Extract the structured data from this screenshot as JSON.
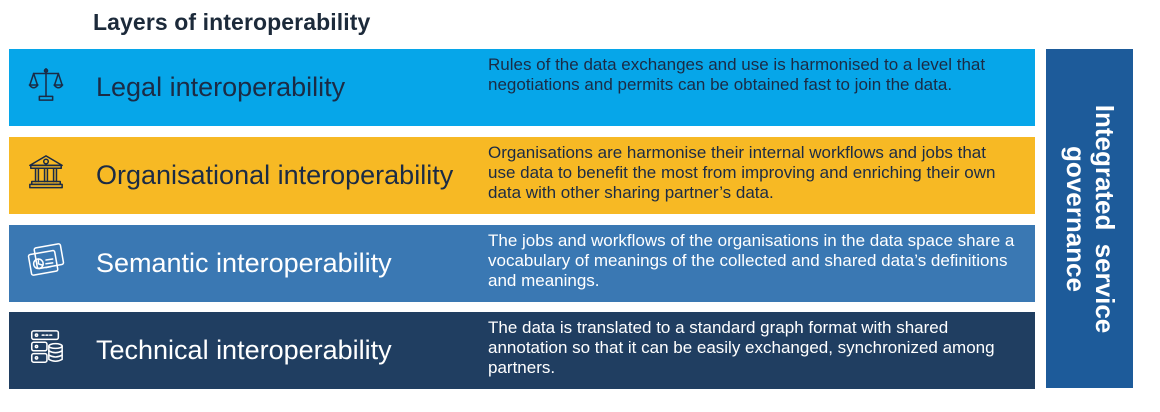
{
  "title": "Layers of interoperability",
  "layers": [
    {
      "name": "Legal interoperability",
      "description": "Rules of the data exchanges and use is harmonised to a level that negotiations and permits can be obtained fast to join the data.",
      "icon": "scales-icon",
      "bg": "#06a6e9",
      "color": "#1b2b45"
    },
    {
      "name": "Organisational interoperability",
      "description": "Organisations are harmonise their internal workflows and jobs that use data to benefit the most from improving and enriching their own data with other sharing partner’s data.",
      "icon": "bank-icon",
      "bg": "#f7b924",
      "color": "#1b2b45"
    },
    {
      "name": "Semantic interoperability",
      "description": "The jobs and workflows of the organisations in the data space share a vocabulary of meanings of the collected and shared data’s definitions and meanings.",
      "icon": "documents-chart-icon",
      "bg": "#3a78b3",
      "color": "#ffffff"
    },
    {
      "name": "Technical interoperability",
      "description": "The data is translated to a standard graph format with shared annotation so that it can be easily exchanged, synchronized among partners.",
      "icon": "server-database-icon",
      "bg": "#203e61",
      "color": "#ffffff"
    }
  ],
  "side": {
    "label": "Integrated service governance",
    "bg": "#1d5b9a"
  }
}
